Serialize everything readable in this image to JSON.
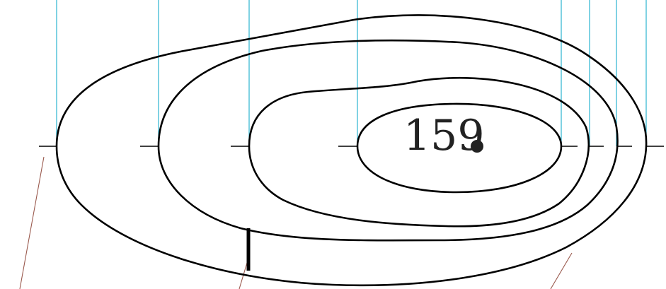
{
  "diagram": {
    "summit": {
      "label": "159"
    },
    "colors": {
      "contour": "#000000",
      "projection_line": "#2bb3d0",
      "leader_line": "#9a5a4e",
      "summit_dot": "#222222"
    }
  }
}
